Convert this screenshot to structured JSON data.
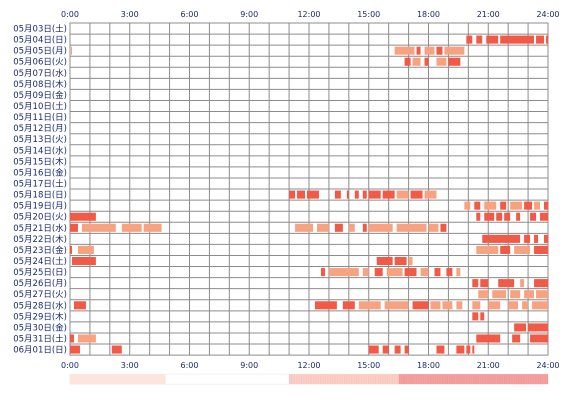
{
  "chart_data": {
    "type": "heatmap",
    "x_ticks": [
      "0:00",
      "3:00",
      "6:00",
      "9:00",
      "12:00",
      "15:00",
      "18:00",
      "21:00",
      "24:00"
    ],
    "x_range_hours": [
      0,
      24
    ],
    "grid": true,
    "colors": {
      "grid": "#8c8c8c",
      "bar_dark": "#f05a46",
      "bar_light": "#f7a382",
      "labels": "#1a2a6c",
      "density_light": "#fde5dd",
      "density_dark": "#f4a0a0"
    },
    "rows": [
      {
        "label": "05月03日(土)",
        "bars": []
      },
      {
        "label": "05月04日(日)",
        "bars": [
          [
            19.9,
            20.2,
            "d"
          ],
          [
            20.4,
            20.7,
            "d"
          ],
          [
            20.9,
            21.5,
            "d"
          ],
          [
            21.6,
            23.3,
            "d"
          ],
          [
            23.4,
            23.8,
            "d"
          ],
          [
            23.9,
            24.0,
            "d"
          ]
        ]
      },
      {
        "label": "05月05日(月)",
        "bars": [
          [
            0.05,
            0.1,
            "l"
          ],
          [
            16.3,
            17.3,
            "l"
          ],
          [
            17.4,
            17.6,
            "d"
          ],
          [
            17.8,
            18.3,
            "l"
          ],
          [
            18.4,
            18.7,
            "d"
          ],
          [
            18.8,
            19.8,
            "l"
          ]
        ]
      },
      {
        "label": "05月06日(火)",
        "bars": [
          [
            16.8,
            17.1,
            "d"
          ],
          [
            17.2,
            17.6,
            "l"
          ],
          [
            17.8,
            18.0,
            "d"
          ],
          [
            18.4,
            18.9,
            "l"
          ],
          [
            19.0,
            19.6,
            "d"
          ]
        ]
      },
      {
        "label": "05月07日(水)",
        "bars": []
      },
      {
        "label": "05月08日(木)",
        "bars": []
      },
      {
        "label": "05月09日(金)",
        "bars": []
      },
      {
        "label": "05月10日(土)",
        "bars": []
      },
      {
        "label": "05月11日(日)",
        "bars": []
      },
      {
        "label": "05月12日(月)",
        "bars": []
      },
      {
        "label": "05月13日(火)",
        "bars": []
      },
      {
        "label": "05月14日(水)",
        "bars": []
      },
      {
        "label": "05月15日(木)",
        "bars": []
      },
      {
        "label": "05月16日(金)",
        "bars": []
      },
      {
        "label": "05月17日(土)",
        "bars": []
      },
      {
        "label": "05月18日(日)",
        "bars": [
          [
            11.0,
            11.3,
            "d"
          ],
          [
            11.4,
            11.8,
            "d"
          ],
          [
            11.9,
            12.5,
            "d"
          ],
          [
            13.3,
            13.6,
            "d"
          ],
          [
            13.9,
            14.0,
            "d"
          ],
          [
            14.3,
            14.5,
            "d"
          ],
          [
            14.7,
            14.9,
            "d"
          ],
          [
            15.0,
            15.6,
            "d"
          ],
          [
            15.7,
            16.3,
            "d"
          ],
          [
            16.4,
            17.0,
            "l"
          ],
          [
            17.1,
            17.7,
            "d"
          ],
          [
            17.8,
            18.4,
            "l"
          ]
        ]
      },
      {
        "label": "05月19日(月)",
        "bars": [
          [
            19.8,
            20.1,
            "l"
          ],
          [
            20.3,
            20.6,
            "d"
          ],
          [
            20.8,
            21.4,
            "l"
          ],
          [
            21.6,
            21.9,
            "d"
          ],
          [
            22.1,
            22.7,
            "l"
          ],
          [
            22.8,
            23.2,
            "d"
          ],
          [
            23.3,
            23.6,
            "l"
          ],
          [
            23.8,
            24.0,
            "d"
          ]
        ]
      },
      {
        "label": "05月20日(火)",
        "bars": [
          [
            0.0,
            1.3,
            "d"
          ],
          [
            20.4,
            20.6,
            "d"
          ],
          [
            20.8,
            21.3,
            "d"
          ],
          [
            21.4,
            21.7,
            "d"
          ],
          [
            21.8,
            22.1,
            "d"
          ],
          [
            22.4,
            22.6,
            "d"
          ],
          [
            23.1,
            23.4,
            "d"
          ],
          [
            23.6,
            24.0,
            "d"
          ]
        ]
      },
      {
        "label": "05月21日(水)",
        "bars": [
          [
            0.0,
            0.4,
            "d"
          ],
          [
            0.6,
            2.3,
            "l"
          ],
          [
            2.6,
            3.6,
            "l"
          ],
          [
            3.7,
            4.6,
            "l"
          ],
          [
            11.3,
            12.2,
            "l"
          ],
          [
            12.4,
            13.0,
            "l"
          ],
          [
            13.3,
            13.7,
            "d"
          ],
          [
            14.0,
            14.3,
            "l"
          ],
          [
            14.7,
            14.9,
            "d"
          ],
          [
            15.0,
            16.2,
            "l"
          ],
          [
            16.4,
            17.9,
            "l"
          ],
          [
            18.0,
            18.5,
            "l"
          ],
          [
            18.6,
            18.9,
            "d"
          ]
        ]
      },
      {
        "label": "05月22日(木)",
        "bars": [
          [
            20.7,
            22.6,
            "d"
          ],
          [
            22.8,
            23.1,
            "d"
          ],
          [
            23.3,
            23.5,
            "d"
          ],
          [
            23.8,
            24.0,
            "d"
          ]
        ]
      },
      {
        "label": "05月23日(金)",
        "bars": [
          [
            0.0,
            0.1,
            "d"
          ],
          [
            0.4,
            1.2,
            "l"
          ],
          [
            20.4,
            21.5,
            "l"
          ],
          [
            21.6,
            22.1,
            "d"
          ],
          [
            22.3,
            23.1,
            "l"
          ],
          [
            23.3,
            24.0,
            "d"
          ]
        ]
      },
      {
        "label": "05月24日(土)",
        "bars": [
          [
            0.1,
            1.3,
            "d"
          ],
          [
            15.4,
            16.2,
            "d"
          ],
          [
            16.3,
            16.9,
            "d"
          ],
          [
            17.0,
            17.2,
            "l"
          ]
        ]
      },
      {
        "label": "05月25日(日)",
        "bars": [
          [
            12.6,
            12.8,
            "d"
          ],
          [
            13.0,
            14.5,
            "l"
          ],
          [
            14.7,
            15.0,
            "l"
          ],
          [
            15.3,
            15.7,
            "d"
          ],
          [
            15.9,
            16.7,
            "l"
          ],
          [
            16.8,
            17.4,
            "d"
          ],
          [
            17.6,
            18.0,
            "l"
          ],
          [
            18.3,
            18.6,
            "d"
          ],
          [
            18.9,
            19.2,
            "d"
          ],
          [
            19.4,
            19.6,
            "l"
          ]
        ]
      },
      {
        "label": "05月26日(月)",
        "bars": [
          [
            20.2,
            20.5,
            "d"
          ],
          [
            20.6,
            21.0,
            "d"
          ],
          [
            21.5,
            22.3,
            "d"
          ],
          [
            22.6,
            22.8,
            "l"
          ],
          [
            23.3,
            24.0,
            "d"
          ]
        ]
      },
      {
        "label": "05月27日(火)",
        "bars": [
          [
            20.5,
            21.0,
            "l"
          ],
          [
            21.2,
            21.9,
            "l"
          ],
          [
            22.1,
            22.6,
            "l"
          ],
          [
            22.8,
            23.3,
            "l"
          ],
          [
            23.4,
            24.0,
            "l"
          ]
        ]
      },
      {
        "label": "05月28日(水)",
        "bars": [
          [
            0.2,
            0.8,
            "d"
          ],
          [
            12.3,
            13.4,
            "d"
          ],
          [
            13.7,
            14.3,
            "d"
          ],
          [
            14.5,
            15.6,
            "l"
          ],
          [
            15.8,
            17.0,
            "l"
          ],
          [
            17.2,
            18.0,
            "d"
          ],
          [
            18.1,
            18.6,
            "l"
          ],
          [
            18.7,
            19.2,
            "l"
          ],
          [
            19.4,
            19.7,
            "l"
          ],
          [
            20.2,
            20.6,
            "l"
          ],
          [
            21.0,
            21.6,
            "l"
          ],
          [
            22.0,
            22.5,
            "l"
          ],
          [
            22.7,
            23.0,
            "l"
          ],
          [
            23.2,
            24.0,
            "l"
          ]
        ]
      },
      {
        "label": "05月29日(木)",
        "bars": [
          [
            20.2,
            20.5,
            "d"
          ],
          [
            20.6,
            20.8,
            "d"
          ]
        ]
      },
      {
        "label": "05月30日(金)",
        "bars": [
          [
            22.3,
            22.9,
            "d"
          ],
          [
            23.0,
            24.0,
            "d"
          ]
        ]
      },
      {
        "label": "05月31日(土)",
        "bars": [
          [
            0.0,
            0.2,
            "d"
          ],
          [
            0.4,
            1.3,
            "l"
          ],
          [
            20.4,
            21.6,
            "d"
          ],
          [
            22.2,
            22.6,
            "d"
          ],
          [
            23.1,
            24.0,
            "d"
          ]
        ]
      },
      {
        "label": "06月01日(日)",
        "bars": [
          [
            0.0,
            0.5,
            "d"
          ],
          [
            2.1,
            2.6,
            "d"
          ],
          [
            15.0,
            15.5,
            "d"
          ],
          [
            15.7,
            16.0,
            "d"
          ],
          [
            16.3,
            16.6,
            "d"
          ],
          [
            16.8,
            17.0,
            "d"
          ],
          [
            18.4,
            18.8,
            "d"
          ],
          [
            19.4,
            19.8,
            "d"
          ],
          [
            19.9,
            20.1,
            "d"
          ],
          [
            20.2,
            20.3,
            "d"
          ]
        ]
      }
    ],
    "density_bands": [
      {
        "start": 0.0,
        "end": 4.8,
        "level": "light"
      },
      {
        "start": 11.0,
        "end": 16.5,
        "level": "medium"
      },
      {
        "start": 16.5,
        "end": 24.0,
        "level": "dark"
      }
    ]
  }
}
